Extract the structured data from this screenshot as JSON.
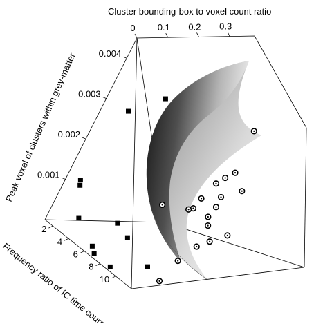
{
  "chart_data": {
    "type": "scatter",
    "projection": "3d",
    "grid": false,
    "legend": "none",
    "axes": {
      "x": {
        "label": "Cluster bounding-box to voxel count ratio",
        "range": [
          0,
          0.38
        ],
        "ticks": [
          {
            "value": 0,
            "label": "0"
          },
          {
            "value": 0.1,
            "label": "0.1"
          },
          {
            "value": 0.2,
            "label": "0.2"
          },
          {
            "value": 0.3,
            "label": "0.3"
          }
        ]
      },
      "y": {
        "label": "Peak voxel of clusters within grey-matter",
        "range": [
          0,
          0.0045
        ],
        "ticks": [
          {
            "value": 0.001,
            "label": "0.001"
          },
          {
            "value": 0.002,
            "label": "0.002"
          },
          {
            "value": 0.003,
            "label": "0.003"
          },
          {
            "value": 0.004,
            "label": "0.004"
          }
        ]
      },
      "z": {
        "label": "Frequency ratio of IC time course",
        "range": [
          1,
          12
        ],
        "ticks": [
          {
            "value": 2,
            "label": "2"
          },
          {
            "value": 4,
            "label": "4"
          },
          {
            "value": 6,
            "label": "6"
          },
          {
            "value": 8,
            "label": "8"
          },
          {
            "value": 10,
            "label": "10"
          }
        ]
      }
    },
    "series": [
      {
        "marker": "square",
        "color": "#000000",
        "points": [
          {
            "x": 0.02,
            "y": 0.003,
            "z": 3.0
          },
          {
            "x": 0.1,
            "y": 0.0034,
            "z": 3.5
          },
          {
            "x": 0.0,
            "y": 0.0012,
            "z": 2.4
          },
          {
            "x": 0.0,
            "y": 0.0011,
            "z": 2.6
          },
          {
            "x": 0.0,
            "y": 0.0005,
            "z": 4.0
          },
          {
            "x": 0.06,
            "y": 0.0007,
            "z": 6.0
          },
          {
            "x": 0.08,
            "y": 0.0005,
            "z": 7.0
          },
          {
            "x": 0.0,
            "y": 0.0002,
            "z": 6.5
          },
          {
            "x": 0.0,
            "y": 0.0001,
            "z": 7.0
          },
          {
            "x": 0.02,
            "y": 0.0,
            "z": 8.5
          },
          {
            "x": 0.12,
            "y": 0.0001,
            "z": 9.0
          }
        ]
      },
      {
        "marker": "circle-dot",
        "color": "#000000",
        "points": [
          {
            "x": 0.05,
            "y": 0.0017,
            "z": 9.5
          },
          {
            "x": 0.28,
            "y": 0.0033,
            "z": 7.8
          },
          {
            "x": 0.22,
            "y": 0.0021,
            "z": 8.5
          },
          {
            "x": 0.25,
            "y": 0.0022,
            "z": 8.2
          },
          {
            "x": 0.28,
            "y": 0.0023,
            "z": 8.0
          },
          {
            "x": 0.18,
            "y": 0.0018,
            "z": 9.0
          },
          {
            "x": 0.16,
            "y": 0.0016,
            "z": 9.3
          },
          {
            "x": 0.14,
            "y": 0.0016,
            "z": 9.5
          },
          {
            "x": 0.25,
            "y": 0.0018,
            "z": 8.7
          },
          {
            "x": 0.24,
            "y": 0.0016,
            "z": 9.0
          },
          {
            "x": 0.22,
            "y": 0.0014,
            "z": 9.3
          },
          {
            "x": 0.23,
            "y": 0.0012,
            "z": 9.4
          },
          {
            "x": 0.32,
            "y": 0.0019,
            "z": 8.3
          },
          {
            "x": 0.2,
            "y": 0.0008,
            "z": 10.2
          },
          {
            "x": 0.24,
            "y": 0.0009,
            "z": 10.0
          },
          {
            "x": 0.15,
            "y": 0.0005,
            "z": 10.6
          },
          {
            "x": 0.3,
            "y": 0.001,
            "z": 9.6
          },
          {
            "x": 0.1,
            "y": 0.0001,
            "z": 11.3
          }
        ]
      }
    ],
    "surface": {
      "description": "curved shaded grey decision boundary separating the two classes",
      "color_light": "#f2f2f2",
      "color_dark": "#1a1a1a"
    }
  }
}
